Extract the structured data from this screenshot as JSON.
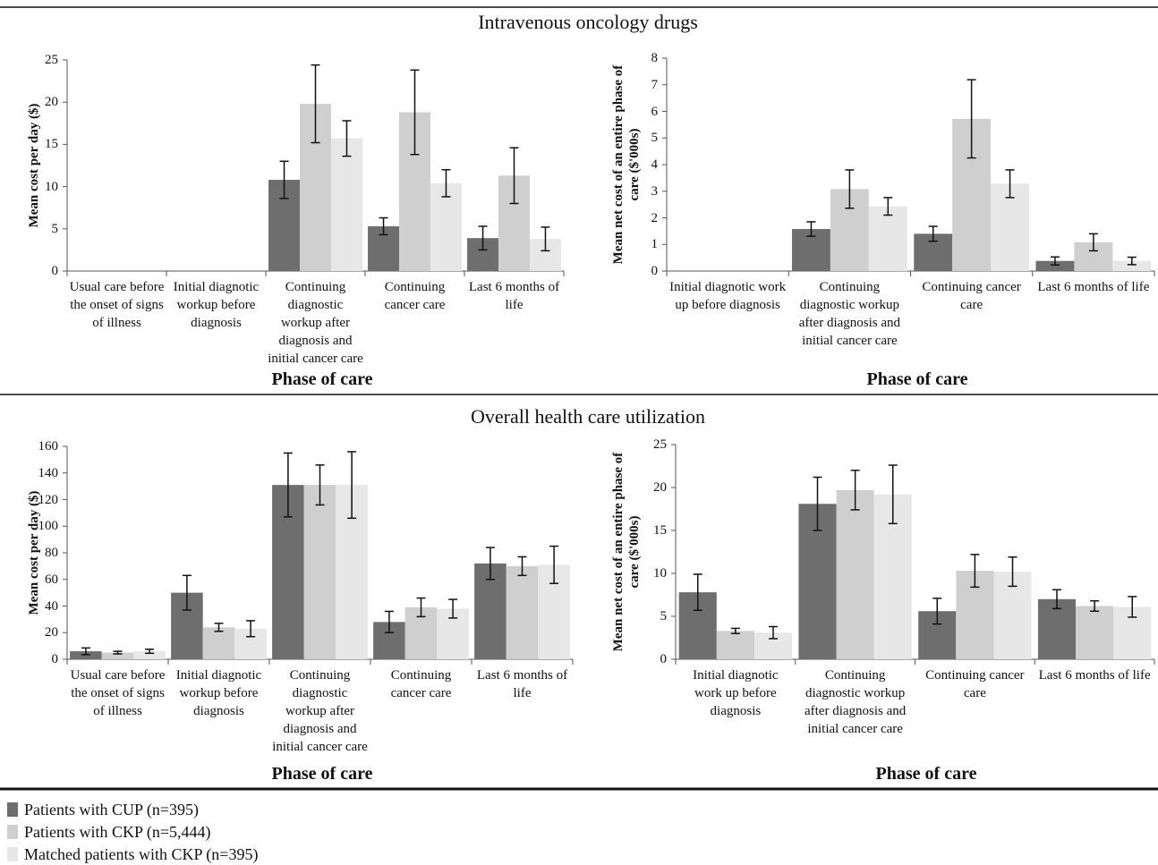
{
  "sections": [
    {
      "title": "Intravenous oncology drugs"
    },
    {
      "title": "Overall health care utilization"
    }
  ],
  "legend": [
    {
      "name": "Patients with CUP  (n=395)",
      "color": "#6e6e6e"
    },
    {
      "name": "Patients with CKP (n=5,444)",
      "color": "#cfcfcf"
    },
    {
      "name": "Matched patients with CKP (n=395)",
      "color": "#e7e7e7"
    }
  ],
  "chart_data": [
    {
      "type": "bar",
      "y_label": "Mean cost per day ($)",
      "x_label": "Phase of care",
      "categories": [
        "Usual care before the onset of signs of illness",
        "Initial diagnotic workup before diagnosis",
        "Continuing diagnostic workup after diagnosis and initial cancer care",
        "Continuing cancer care",
        "Last 6 months of life"
      ],
      "series": [
        {
          "values": [
            0,
            0,
            10.8,
            5.3,
            3.9
          ],
          "errors": [
            null,
            null,
            2.2,
            1.0,
            1.4
          ]
        },
        {
          "values": [
            0,
            0,
            19.8,
            18.8,
            11.3
          ],
          "errors": [
            null,
            null,
            4.6,
            5.0,
            3.3
          ]
        },
        {
          "values": [
            0,
            0,
            15.7,
            10.4,
            3.8
          ],
          "errors": [
            null,
            null,
            2.1,
            1.6,
            1.4
          ]
        }
      ],
      "ylim": [
        0,
        25
      ],
      "yticks": [
        0,
        5,
        10,
        15,
        20,
        25
      ]
    },
    {
      "type": "bar",
      "y_label": "Mean net cost of  an entire phase of care ($'000s)",
      "x_label": "Phase of care",
      "categories": [
        "Initial diagnotic work up before diagnosis",
        "Continuing diagnostic workup after diagnosis and initial cancer care",
        "Continuing cancer care",
        "Last 6 months of life"
      ],
      "series": [
        {
          "values": [
            0,
            1.58,
            1.4,
            0.38
          ],
          "errors": [
            null,
            0.27,
            0.28,
            0.15
          ]
        },
        {
          "values": [
            0,
            3.08,
            5.72,
            1.08
          ],
          "errors": [
            null,
            0.72,
            1.47,
            0.32
          ]
        },
        {
          "values": [
            0,
            2.43,
            3.28,
            0.38
          ],
          "errors": [
            null,
            0.33,
            0.52,
            0.14
          ]
        }
      ],
      "ylim": [
        0,
        8
      ],
      "yticks": [
        0,
        1,
        2,
        3,
        4,
        5,
        6,
        7,
        8
      ]
    },
    {
      "type": "bar",
      "y_label": "Mean cost per day ($)",
      "x_label": "Phase of care",
      "categories": [
        "Usual care before the onset of signs of illness",
        "Initial diagnotic workup before diagnosis",
        "Continuing diagnostic workup after diagnosis and initial cancer care",
        "Continuing cancer care",
        "Last 6 months of life"
      ],
      "series": [
        {
          "values": [
            6,
            50,
            131,
            28,
            72
          ],
          "errors": [
            2.5,
            13,
            24,
            8,
            12
          ]
        },
        {
          "values": [
            5,
            24,
            131,
            39,
            70
          ],
          "errors": [
            1,
            3,
            15,
            7,
            7
          ]
        },
        {
          "values": [
            6,
            23,
            131,
            38,
            71
          ],
          "errors": [
            1.5,
            6,
            25,
            7,
            14
          ]
        }
      ],
      "ylim": [
        0,
        160
      ],
      "yticks": [
        0,
        20,
        40,
        60,
        80,
        100,
        120,
        140,
        160
      ]
    },
    {
      "type": "bar",
      "y_label": "Mean net cost of  an entire phase of care ($'000s)",
      "x_label": "Phase of care",
      "categories": [
        "Initial diagnotic work up before diagnosis",
        "Continuing diagnostic workup after diagnosis and initial cancer care",
        "Continuing cancer care",
        "Last 6 months of life"
      ],
      "series": [
        {
          "values": [
            7.8,
            18.1,
            5.6,
            7.0
          ],
          "errors": [
            2.1,
            3.1,
            1.5,
            1.1
          ]
        },
        {
          "values": [
            3.3,
            19.7,
            10.3,
            6.2
          ],
          "errors": [
            0.3,
            2.3,
            1.9,
            0.6
          ]
        },
        {
          "values": [
            3.1,
            19.2,
            10.2,
            6.1
          ],
          "errors": [
            0.7,
            3.4,
            1.7,
            1.2
          ]
        }
      ],
      "ylim": [
        0,
        25
      ],
      "yticks": [
        0,
        5,
        10,
        15,
        20,
        25
      ]
    }
  ]
}
